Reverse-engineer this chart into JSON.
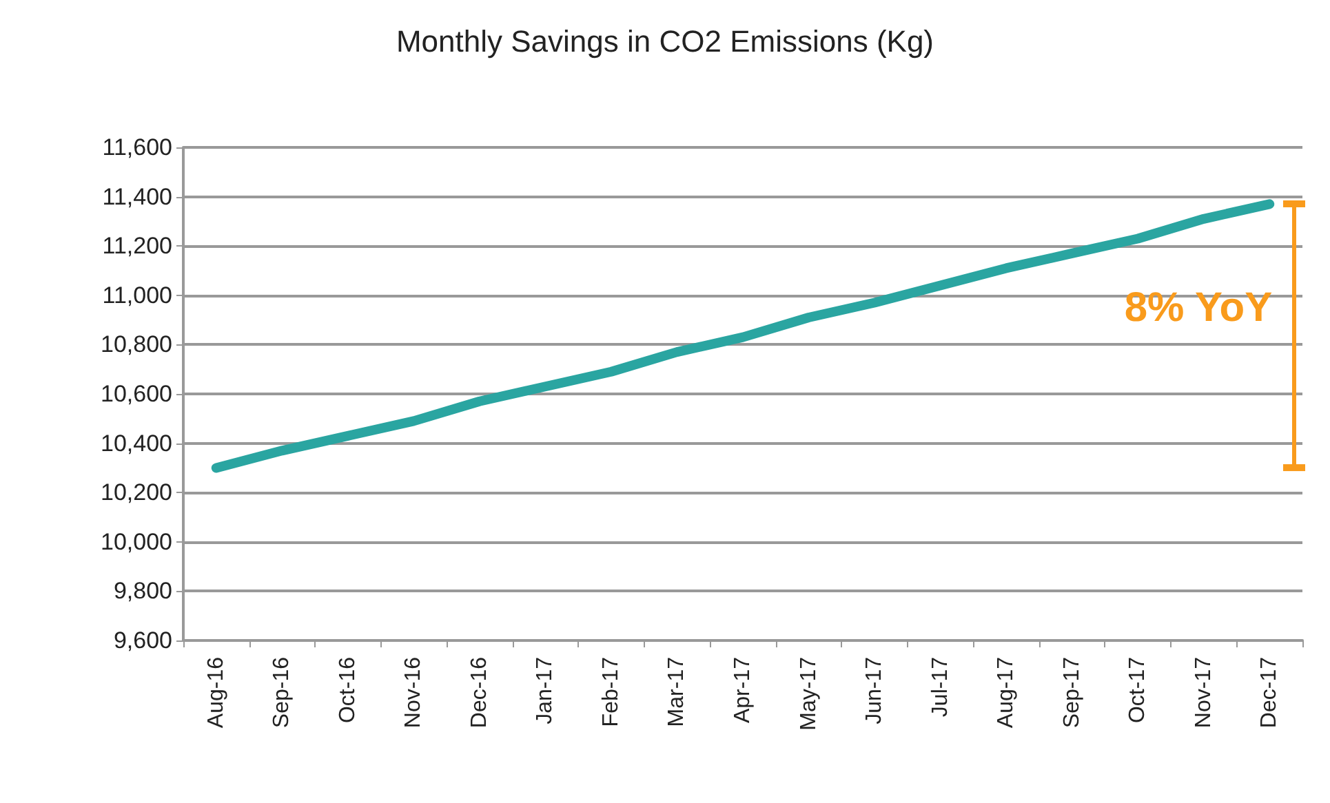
{
  "chart_data": {
    "type": "line",
    "title": "Monthly Savings in CO2 Emissions (Kg)",
    "categories": [
      "Aug-16",
      "Sep-16",
      "Oct-16",
      "Nov-16",
      "Dec-16",
      "Jan-17",
      "Feb-17",
      "Mar-17",
      "Apr-17",
      "May-17",
      "Jun-17",
      "Jul-17",
      "Aug-17",
      "Sep-17",
      "Oct-17",
      "Nov-17",
      "Dec-17"
    ],
    "series": [
      {
        "color": "#2aa5a1",
        "values": [
          10300,
          10370,
          10430,
          10490,
          10570,
          10630,
          10690,
          10770,
          10830,
          10910,
          10970,
          11040,
          11110,
          11170,
          11230,
          11310,
          11370
        ]
      }
    ],
    "ylim": [
      9600,
      11600
    ],
    "yticks": [
      {
        "value": 9600,
        "label": "9,600"
      },
      {
        "value": 9800,
        "label": "9,800"
      },
      {
        "value": 10000,
        "label": "10,000"
      },
      {
        "value": 10200,
        "label": "10,200"
      },
      {
        "value": 10400,
        "label": "10,400"
      },
      {
        "value": 10600,
        "label": "10,600"
      },
      {
        "value": 10800,
        "label": "10,800"
      },
      {
        "value": 11000,
        "label": "11,000"
      },
      {
        "value": 11200,
        "label": "11,200"
      },
      {
        "value": 11400,
        "label": "11,400"
      },
      {
        "value": 11600,
        "label": "11,600"
      }
    ],
    "grid": "y",
    "line_style": "solid",
    "annotations": [
      "8% YoY"
    ]
  }
}
